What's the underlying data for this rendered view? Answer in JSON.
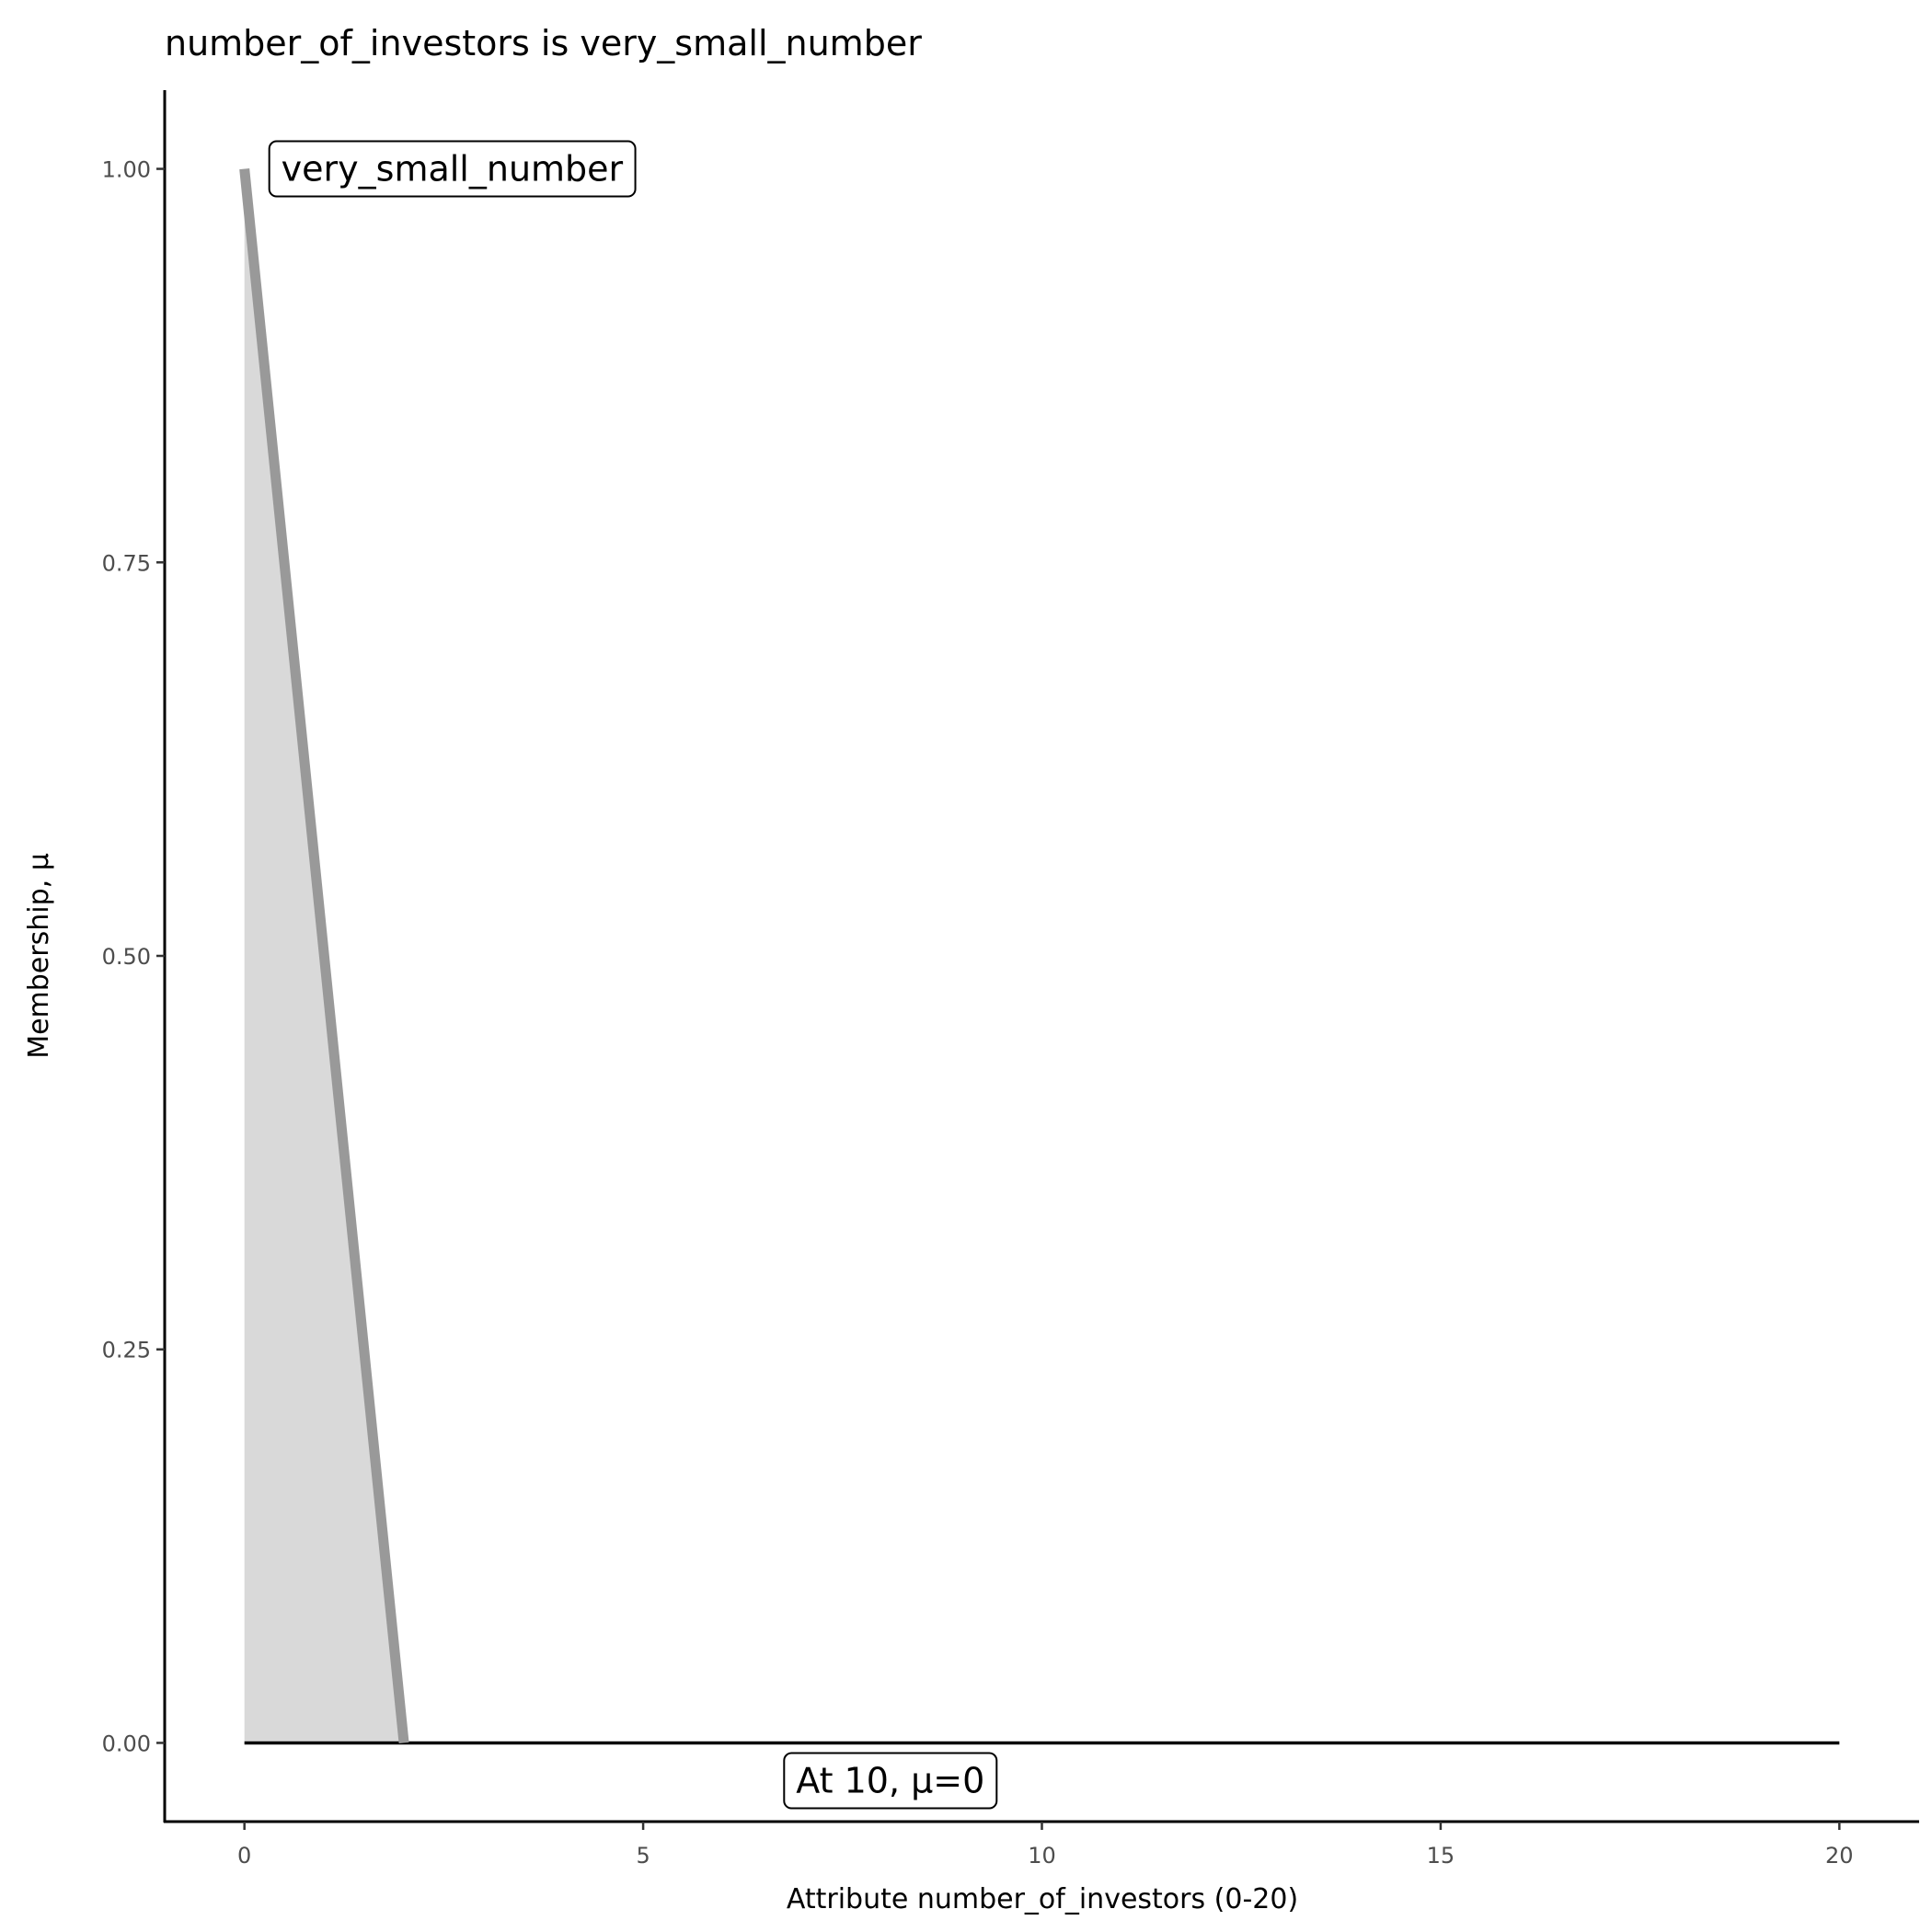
{
  "chart_data": {
    "type": "area",
    "title": "number_of_investors is very_small_number",
    "xlabel": "Attribute number_of_investors (0-20)",
    "ylabel": "Membership, μ",
    "xlim": [
      -1,
      21
    ],
    "ylim": [
      -0.05,
      1.05
    ],
    "xticks": [
      0,
      5,
      10,
      15,
      20
    ],
    "xtick_labels": [
      "0",
      "5",
      "10",
      "15",
      "20"
    ],
    "yticks": [
      0,
      0.25,
      0.5,
      0.75,
      1.0
    ],
    "ytick_labels": [
      "0.00",
      "0.25",
      "0.50",
      "0.75",
      "1.00"
    ],
    "grid": false,
    "series": [
      {
        "name": "very_small_number",
        "x": [
          0,
          2
        ],
        "y": [
          1,
          0
        ],
        "color": "#999999",
        "fill": "#d9d9d9"
      }
    ],
    "baseline": {
      "x": [
        0,
        20
      ],
      "y": [
        0,
        0
      ],
      "color": "#000000"
    },
    "annotations": [
      {
        "text": "very_small_number",
        "x": 0,
        "y": 1
      },
      {
        "text": "At 10, μ=0",
        "x": 8.1,
        "y": -0.024
      }
    ]
  }
}
